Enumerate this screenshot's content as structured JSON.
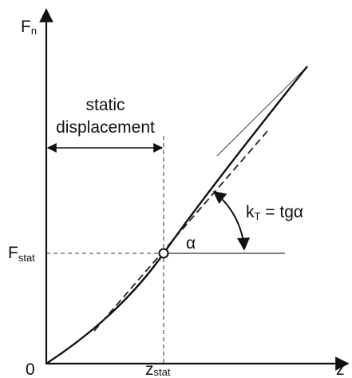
{
  "labels": {
    "fn": {
      "main": "F",
      "sub": "n"
    },
    "fstat": {
      "main": "F",
      "sub": "stat"
    },
    "origin": "0",
    "zstat": {
      "main": "z",
      "sub": "stat"
    },
    "z": "z",
    "static_displacement": [
      "static",
      "displacement"
    ],
    "kt": {
      "main": "k",
      "sub": "T",
      "rest": " = tgα"
    },
    "alpha": "α"
  }
}
